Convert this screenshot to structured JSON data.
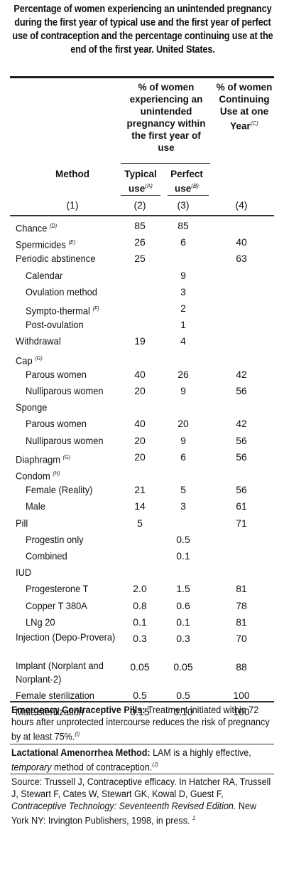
{
  "title": "Percentage of women experiencing an unintended pregnancy during the first year of typical use and the first year of perfect use of contraception and the percentage continuing use at the end of the first year. United States.",
  "headers": {
    "method": "Method",
    "experiencing": "% of women experiencing an unintended pregnancy within the first year of use",
    "typical": "Typical use",
    "typical_sup": "(A)",
    "perfect": "Perfect use",
    "perfect_sup": "(B)",
    "continuing": "% of women Continuing Use at one Year",
    "continuing_sup": "(C)",
    "col1": "(1)",
    "col2": "(2)",
    "col3": "(3)",
    "col4": "(4)"
  },
  "rows": [
    {
      "label": "Chance",
      "sup": "(D)",
      "typical": "85",
      "perfect": "85",
      "cont": ""
    },
    {
      "label": "Spermicides",
      "sup": "(E)",
      "typical": "26",
      "perfect": "6",
      "cont": "40"
    },
    {
      "label": "Periodic abstinence",
      "sup": "",
      "typical": "25",
      "perfect": "",
      "cont": "63"
    },
    {
      "label": "Calendar",
      "sup": "",
      "typical": "",
      "perfect": "9",
      "cont": ""
    },
    {
      "label": "Ovulation method",
      "sup": "",
      "typical": "",
      "perfect": "3",
      "cont": ""
    },
    {
      "label": "Sympto-thermal",
      "sup": "(F)",
      "typical": "",
      "perfect": "2",
      "cont": ""
    },
    {
      "label": "Post-ovulation",
      "sup": "",
      "typical": "",
      "perfect": "1",
      "cont": ""
    },
    {
      "label": "Withdrawal",
      "sup": "",
      "typical": "19",
      "perfect": "4",
      "cont": ""
    },
    {
      "label": "Cap",
      "sup": "(G)",
      "typical": "",
      "perfect": "",
      "cont": ""
    },
    {
      "label": "Parous women",
      "sup": "",
      "typical": "40",
      "perfect": "26",
      "cont": "42"
    },
    {
      "label": "Nulliparous women",
      "sup": "",
      "typical": "20",
      "perfect": "9",
      "cont": "56"
    },
    {
      "label": "Sponge",
      "sup": "",
      "typical": "",
      "perfect": "",
      "cont": ""
    },
    {
      "label": "Parous women",
      "sup": "",
      "typical": "40",
      "perfect": "20",
      "cont": "42"
    },
    {
      "label": "Nulliparous women",
      "sup": "",
      "typical": "20",
      "perfect": "9",
      "cont": "56"
    },
    {
      "label": "Diaphragm",
      "sup": "(G)",
      "typical": "20",
      "perfect": "6",
      "cont": "56"
    },
    {
      "label": "Condom",
      "sup": "(H)",
      "typical": "",
      "perfect": "",
      "cont": ""
    },
    {
      "label": "Female (Reality)",
      "sup": "",
      "typical": "21",
      "perfect": "5",
      "cont": "56"
    },
    {
      "label": "Male",
      "sup": "",
      "typical": "14",
      "perfect": "3",
      "cont": "61"
    },
    {
      "label": "Pill",
      "sup": "",
      "typical": "5",
      "perfect": "",
      "cont": "71"
    },
    {
      "label": "Progestin only",
      "sup": "",
      "typical": "",
      "perfect": "0.5",
      "cont": ""
    },
    {
      "label": "Combined",
      "sup": "",
      "typical": "",
      "perfect": "0.1",
      "cont": ""
    },
    {
      "label": "IUD",
      "sup": "",
      "typical": "",
      "perfect": "",
      "cont": ""
    },
    {
      "label": "Progesterone T",
      "sup": "",
      "typical": "2.0",
      "perfect": "1.5",
      "cont": "81"
    },
    {
      "label": "Copper T 380A",
      "sup": "",
      "typical": "0.8",
      "perfect": "0.6",
      "cont": "78"
    },
    {
      "label": "LNg 20",
      "sup": "",
      "typical": "0.1",
      "perfect": "0.1",
      "cont": "81"
    },
    {
      "label": "Injection (Depo-Provera)",
      "sup": "",
      "typical": "0.3",
      "perfect": "0.3",
      "cont": "70"
    },
    {
      "label": "Implant (Norplant and Norplant-2)",
      "sup": "",
      "typical": "0.05",
      "perfect": "0.05",
      "cont": "88"
    },
    {
      "label": "Female sterilization",
      "sup": "",
      "typical": "0.5",
      "perfect": "0.5",
      "cont": "100"
    },
    {
      "label": "Male sterilization",
      "sup": "",
      "typical": "0.15",
      "perfect": "0.10",
      "cont": "100"
    }
  ],
  "footnotes": {
    "ecp_title": "Emergency Contraceptive Pills:",
    "ecp_text": "Treatment initiated within 72 hours after unprotected intercourse reduces the risk of pregnancy by at least 75%.",
    "ecp_sup": "(I)",
    "lam_title": "Lactational Amenorrhea Method:",
    "lam_text_a": "LAM is a highly effective,",
    "lam_text_em": "temporary",
    "lam_text_b": "method of contraception.",
    "lam_sup": "(J)",
    "source_a": "Source: Trussell J, Contraceptive efficacy. In Hatcher RA, Trussell J, Stewart F, Cates W, Stewart GK, Kowal D, Guest F,",
    "source_em": "Contraceptive Technology: Seventeenth Revised Edition.",
    "source_b": "New York NY: Irvington Publishers, 1998, in press.",
    "source_sup": "1"
  }
}
